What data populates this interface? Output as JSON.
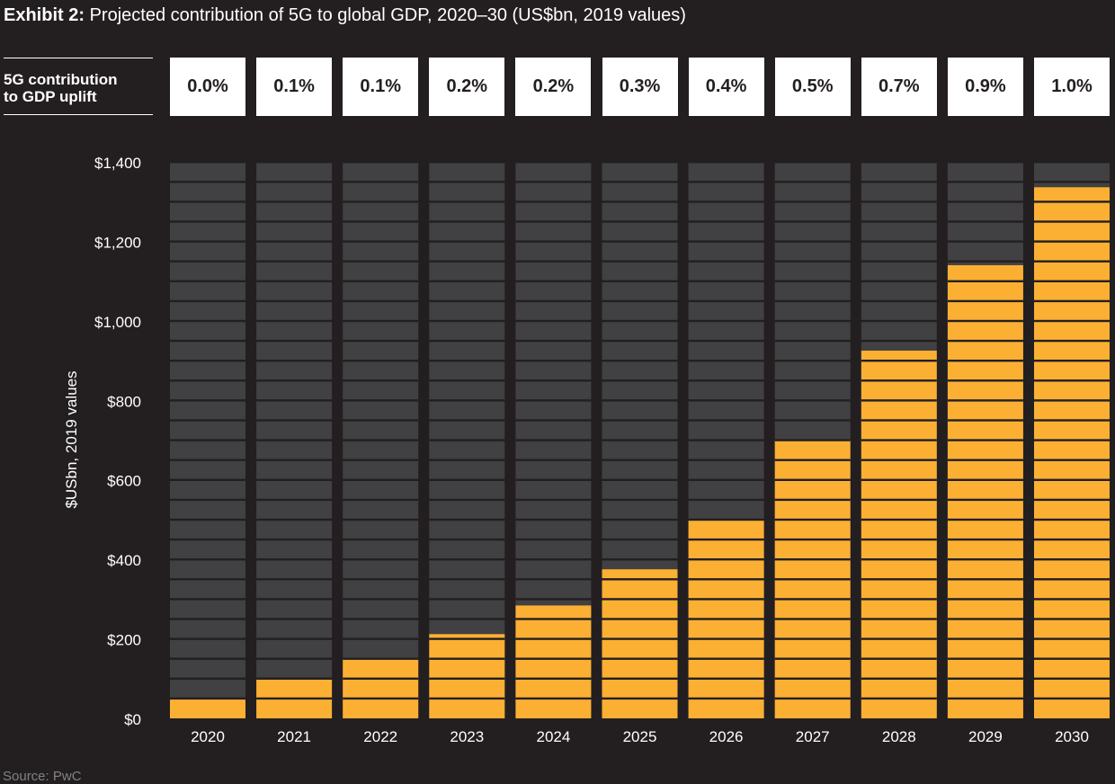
{
  "header": {
    "title_label": "Exhibit 2:",
    "title_text": "Projected contribution of 5G to global GDP, 2020–30 (US$bn, 2019 values)"
  },
  "uplift": {
    "label_line1": "5G contribution",
    "label_line2": "to GDP uplift"
  },
  "footer": {
    "source": "Source: PwC"
  },
  "colors": {
    "background": "#231f20",
    "bar_background": "#414042",
    "bar_fill": "#fbb034",
    "text": "#ffffff",
    "box_text": "#231f20"
  },
  "chart_data": {
    "type": "bar",
    "title": "Projected contribution of 5G to global GDP, 2020–30 (US$bn, 2019 values)",
    "categories": [
      "2020",
      "2021",
      "2022",
      "2023",
      "2024",
      "2025",
      "2026",
      "2027",
      "2028",
      "2029",
      "2030"
    ],
    "values": [
      48,
      98,
      148,
      212,
      284,
      375,
      500,
      700,
      925,
      1140,
      1336
    ],
    "uplift_percent": [
      "0.0%",
      "0.1%",
      "0.1%",
      "0.2%",
      "0.2%",
      "0.3%",
      "0.4%",
      "0.5%",
      "0.7%",
      "0.9%",
      "1.0%"
    ],
    "ylabel": "$USbn, 2019 values",
    "xlabel": "",
    "ylim": [
      0,
      1400
    ],
    "yticks": [
      0,
      200,
      400,
      600,
      800,
      1000,
      1200,
      1400
    ],
    "ytick_labels": [
      "$0",
      "$200",
      "$400",
      "$600",
      "$800",
      "$1,000",
      "$1,200",
      "$1,400"
    ],
    "grid": false,
    "legend": "none"
  }
}
